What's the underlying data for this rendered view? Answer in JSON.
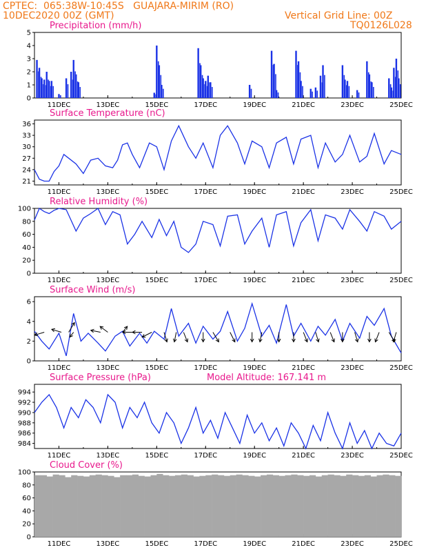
{
  "header": {
    "line1": "CPTEC:  065:38W-10:45S   GUAJARA-MIRIM (RO)",
    "line2": "10DEC2020 00Z (GMT)",
    "grid_note": "Vertical Grid Line: 00Z",
    "run_id": "TQ0126L028"
  },
  "colors": {
    "header": "#f07818",
    "title": "#e8188c",
    "series": "#1a32e6",
    "cloud": "#a8a8a8"
  },
  "x_labels": [
    "11DEC",
    "13DEC",
    "15DEC",
    "17DEC",
    "19DEC",
    "21DEC",
    "23DEC",
    "25DEC"
  ],
  "x_range_days": [
    10,
    25
  ],
  "chart_data": [
    {
      "type": "bar",
      "title": "Precipitation (mm/h)",
      "ylim": [
        0,
        5
      ],
      "yticks": [
        0,
        1,
        2,
        3,
        4,
        5
      ],
      "x_day": [
        10.1,
        10.2,
        10.3,
        10.4,
        10.5,
        10.6,
        10.7,
        11.0,
        11.3,
        11.5,
        11.6,
        11.7,
        11.8,
        14.9,
        15.0,
        15.1,
        15.2,
        16.7,
        16.8,
        16.9,
        17.0,
        17.1,
        17.2,
        18.8,
        19.7,
        19.8,
        19.9,
        20.7,
        20.8,
        20.9,
        21.3,
        21.5,
        21.7,
        21.8,
        22.6,
        22.7,
        22.8,
        23.2,
        23.6,
        23.7,
        23.8,
        24.5,
        24.6,
        24.7,
        24.8,
        24.9
      ],
      "values": [
        2.9,
        2.3,
        1.5,
        1.4,
        2.0,
        1.3,
        1.3,
        0.3,
        1.5,
        2.0,
        2.9,
        1.8,
        1.2,
        0.4,
        4.0,
        2.5,
        1.0,
        3.8,
        2.5,
        1.5,
        1.3,
        1.7,
        1.2,
        1.0,
        3.6,
        2.6,
        0.6,
        3.6,
        2.8,
        1.3,
        0.7,
        0.8,
        1.7,
        2.5,
        2.5,
        1.4,
        1.3,
        0.6,
        2.8,
        1.8,
        1.2,
        1.5,
        0.8,
        2.3,
        3.0,
        1.5
      ]
    },
    {
      "type": "line",
      "title": "Surface Temperature (nC)",
      "ylim": [
        20,
        37
      ],
      "yticks": [
        21,
        24,
        27,
        30,
        33,
        36
      ],
      "x_day": [
        10.0,
        10.2,
        10.4,
        10.6,
        10.8,
        11.0,
        11.2,
        11.4,
        11.7,
        12.0,
        12.3,
        12.6,
        12.9,
        13.2,
        13.4,
        13.6,
        13.8,
        14.0,
        14.3,
        14.7,
        15.0,
        15.3,
        15.6,
        15.9,
        16.3,
        16.6,
        16.9,
        17.3,
        17.6,
        17.9,
        18.3,
        18.6,
        18.9,
        19.3,
        19.6,
        19.9,
        20.3,
        20.6,
        20.9,
        21.3,
        21.6,
        21.9,
        22.3,
        22.6,
        22.9,
        23.3,
        23.6,
        23.9,
        24.3,
        24.6,
        25.0
      ],
      "values": [
        24,
        21.5,
        21,
        21,
        23.5,
        25,
        28,
        27,
        25.5,
        23,
        26.5,
        27,
        25,
        24.5,
        26.5,
        30.5,
        31,
        28,
        24.5,
        31,
        30,
        24,
        31.5,
        35.5,
        30,
        27,
        31,
        24.5,
        33,
        35.5,
        31,
        25.5,
        31.5,
        30,
        24.5,
        31,
        32.5,
        25.5,
        32,
        33,
        24.5,
        31,
        26,
        28,
        33,
        26,
        27.5,
        33.5,
        25.5,
        29,
        28
      ]
    },
    {
      "type": "line",
      "title": "Relative Humidity (%)",
      "ylim": [
        0,
        100
      ],
      "yticks": [
        0,
        20,
        40,
        60,
        80,
        100
      ],
      "x_day": [
        10.0,
        10.2,
        10.4,
        10.6,
        10.8,
        11.0,
        11.3,
        11.7,
        12.0,
        12.3,
        12.6,
        12.9,
        13.2,
        13.5,
        13.8,
        14.1,
        14.4,
        14.8,
        15.1,
        15.4,
        15.7,
        16.0,
        16.3,
        16.6,
        16.9,
        17.3,
        17.6,
        17.9,
        18.3,
        18.6,
        18.9,
        19.3,
        19.6,
        19.9,
        20.3,
        20.6,
        20.9,
        21.3,
        21.6,
        21.9,
        22.3,
        22.6,
        22.9,
        23.3,
        23.6,
        23.9,
        24.3,
        24.6,
        25.0
      ],
      "values": [
        82,
        100,
        95,
        92,
        97,
        100,
        98,
        65,
        85,
        92,
        100,
        75,
        95,
        90,
        45,
        60,
        80,
        55,
        83,
        58,
        80,
        40,
        32,
        45,
        80,
        75,
        42,
        88,
        90,
        45,
        65,
        85,
        40,
        90,
        95,
        42,
        78,
        98,
        50,
        90,
        85,
        68,
        98,
        80,
        65,
        95,
        88,
        68,
        80
      ]
    },
    {
      "type": "line",
      "title": "Surface Wind (m/s)",
      "ylim": [
        0,
        6.5
      ],
      "yticks": [
        0,
        2,
        4,
        6
      ],
      "x_day": [
        10.0,
        10.3,
        10.6,
        11.0,
        11.3,
        11.6,
        11.9,
        12.2,
        12.6,
        12.9,
        13.3,
        13.6,
        13.9,
        14.3,
        14.6,
        14.9,
        15.3,
        15.6,
        15.9,
        16.3,
        16.6,
        16.9,
        17.3,
        17.6,
        17.9,
        18.3,
        18.6,
        18.9,
        19.3,
        19.6,
        19.9,
        20.3,
        20.6,
        20.9,
        21.3,
        21.6,
        21.9,
        22.3,
        22.6,
        22.9,
        23.3,
        23.6,
        23.9,
        24.3,
        24.6,
        25.0
      ],
      "values": [
        3.0,
        2.0,
        1.2,
        2.8,
        0.5,
        4.8,
        2.0,
        2.8,
        1.8,
        1.0,
        2.5,
        3.0,
        1.5,
        2.8,
        1.8,
        3.0,
        2.2,
        5.3,
        2.5,
        3.8,
        1.8,
        3.5,
        2.2,
        3.0,
        5.0,
        2.0,
        3.3,
        5.8,
        2.5,
        3.6,
        1.8,
        5.7,
        2.5,
        3.8,
        2.0,
        3.5,
        2.6,
        4.2,
        2.0,
        3.8,
        2.3,
        4.5,
        3.6,
        5.3,
        2.5,
        0.8
      ],
      "arrows": [
        [
          10.4,
          -1,
          0.3
        ],
        [
          11.1,
          -1,
          -0.3
        ],
        [
          11.4,
          0.6,
          -1
        ],
        [
          11.6,
          -0.4,
          0.5
        ],
        [
          12.7,
          -1,
          -0.2
        ],
        [
          13.0,
          -0.8,
          -0.6
        ],
        [
          13.6,
          0.5,
          -0.6
        ],
        [
          14.0,
          -1,
          0
        ],
        [
          14.4,
          -1,
          0
        ],
        [
          14.8,
          -1,
          0.5
        ],
        [
          15.3,
          0.3,
          1
        ],
        [
          15.8,
          -0.2,
          1
        ],
        [
          16.1,
          0.4,
          1
        ],
        [
          16.9,
          0,
          1
        ],
        [
          17.3,
          0.6,
          1
        ],
        [
          18.0,
          0.5,
          1
        ],
        [
          18.9,
          0,
          1
        ],
        [
          19.3,
          -0.2,
          1
        ],
        [
          20.0,
          0,
          1
        ],
        [
          20.6,
          0,
          1
        ],
        [
          21.0,
          0.4,
          1
        ],
        [
          21.5,
          0.3,
          1
        ],
        [
          22.1,
          0.4,
          1
        ],
        [
          22.6,
          0,
          1
        ],
        [
          23.1,
          0.3,
          1
        ],
        [
          23.7,
          0,
          1
        ],
        [
          24.1,
          -0.4,
          1
        ],
        [
          24.5,
          0.6,
          1
        ],
        [
          24.8,
          -0.3,
          1
        ]
      ]
    },
    {
      "type": "line",
      "title": "Surface Pressure (hPa)",
      "subtitle": "Model Altitude: 167.141  m",
      "ylim": [
        983,
        995.5
      ],
      "yticks": [
        984,
        986,
        988,
        990,
        992,
        994
      ],
      "x_day": [
        10.0,
        10.3,
        10.6,
        10.9,
        11.2,
        11.5,
        11.8,
        12.1,
        12.4,
        12.7,
        13.0,
        13.3,
        13.6,
        13.9,
        14.2,
        14.5,
        14.8,
        15.1,
        15.4,
        15.7,
        16.0,
        16.3,
        16.6,
        16.9,
        17.2,
        17.5,
        17.8,
        18.1,
        18.4,
        18.7,
        19.0,
        19.3,
        19.6,
        19.9,
        20.2,
        20.5,
        20.8,
        21.1,
        21.4,
        21.7,
        22.0,
        22.3,
        22.6,
        22.9,
        23.2,
        23.5,
        23.8,
        24.1,
        24.4,
        24.7,
        25.0
      ],
      "values": [
        990,
        992,
        993.5,
        991,
        987,
        991,
        989,
        992.5,
        991,
        988,
        993.5,
        992,
        987,
        991,
        989,
        992,
        988,
        986,
        990,
        988,
        984,
        987,
        991,
        986,
        988.5,
        985,
        990,
        987,
        984,
        989.5,
        986,
        988,
        984.5,
        987,
        983.5,
        988,
        986,
        983,
        987.5,
        984.5,
        990,
        986,
        983,
        988,
        984,
        986.5,
        983,
        986,
        984,
        983.5,
        986
      ]
    },
    {
      "type": "bar",
      "title": "Cloud Cover (%)",
      "ylim": [
        0,
        100
      ],
      "yticks": [
        0,
        20,
        40,
        60,
        80,
        100
      ],
      "values_note": "near-total cloud cover throughout the period",
      "values": [
        95,
        95,
        93,
        96,
        95,
        92,
        95,
        94,
        93,
        95,
        96,
        95,
        94,
        92,
        95,
        95,
        96,
        94,
        93,
        95,
        97,
        95,
        94,
        95,
        96,
        95,
        93,
        94,
        95,
        96,
        95,
        94,
        95,
        96,
        95,
        94,
        93,
        95,
        96,
        95,
        94,
        95,
        96,
        95,
        94,
        95,
        93,
        95,
        96,
        95,
        94,
        96,
        95,
        94,
        95,
        93,
        95,
        96,
        95,
        94
      ]
    }
  ]
}
